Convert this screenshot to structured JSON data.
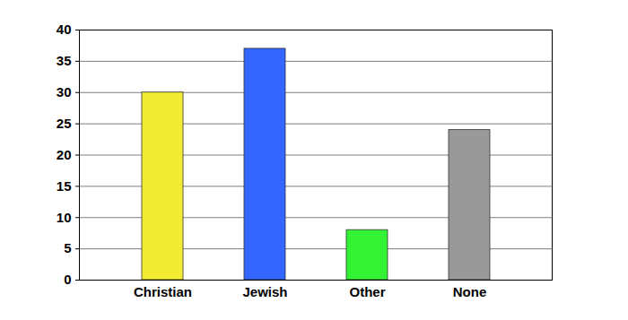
{
  "chart_data": {
    "type": "bar",
    "categories": [
      "Christian",
      "Jewish",
      "Other",
      "None"
    ],
    "values": [
      30,
      37,
      8,
      24
    ],
    "colors": [
      "#f2ec33",
      "#3366ff",
      "#33f233",
      "#999999"
    ],
    "ylim": [
      0,
      40
    ],
    "yticks": [
      0,
      5,
      10,
      15,
      20,
      25,
      30,
      35,
      40
    ],
    "grid": true
  }
}
